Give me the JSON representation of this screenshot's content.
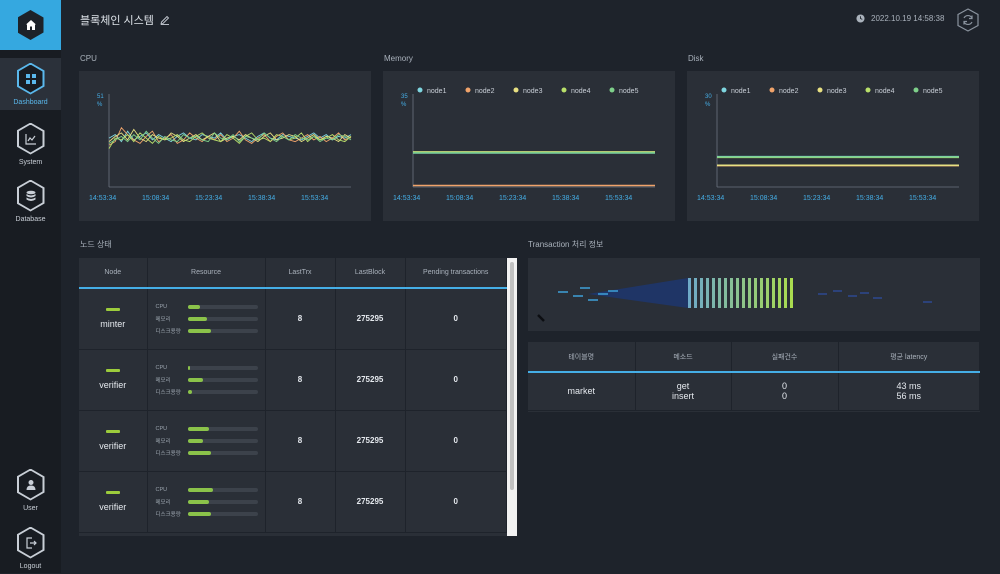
{
  "app": {
    "title": "블록체인 시스템",
    "datetime": "2022.10.19 14:58:38"
  },
  "sidebar": {
    "items": [
      {
        "label": "Dashboard",
        "icon": "dashboard-icon",
        "active": true
      },
      {
        "label": "System",
        "icon": "system-chart-icon",
        "active": false
      },
      {
        "label": "Database",
        "icon": "database-icon",
        "active": false
      },
      {
        "label": "User",
        "icon": "user-icon",
        "active": false
      },
      {
        "label": "Logout",
        "icon": "logout-icon",
        "active": false
      }
    ]
  },
  "sections": {
    "cpu": "CPU",
    "memory": "Memory",
    "disk": "Disk",
    "nodes": "노드 상태",
    "transaction": "Transaction 처리 정보"
  },
  "colors": {
    "accent": "#45aee6",
    "node1": "#7fd6e0",
    "node2": "#f0a36a",
    "node3": "#e8e082",
    "node4": "#b9e06a",
    "node5": "#7ed08a",
    "bar": "#8bc34a"
  },
  "chart_data": [
    {
      "type": "line",
      "title": "CPU",
      "y_top_label": "51",
      "y_unit": "%",
      "x_ticks": [
        "14:53:34",
        "15:08:34",
        "15:23:34",
        "15:38:34",
        "15:53:34"
      ],
      "ylim": [
        0,
        51
      ],
      "series": [
        {
          "name": "node1",
          "values": [
            28,
            30,
            26,
            32,
            27,
            29,
            31,
            27,
            30,
            28,
            26,
            29,
            31,
            28,
            27,
            30,
            29,
            28,
            31,
            27,
            29,
            30,
            28,
            26,
            29,
            31,
            28,
            27,
            30,
            29,
            28,
            27,
            29,
            31,
            28,
            30,
            27,
            29,
            28,
            30
          ]
        },
        {
          "name": "node2",
          "values": [
            24,
            26,
            34,
            30,
            27,
            25,
            29,
            32,
            26,
            28,
            30,
            25,
            27,
            31,
            28,
            26,
            29,
            27,
            30,
            26,
            28,
            32,
            27,
            25,
            28,
            30,
            26,
            29,
            31,
            27,
            26,
            28,
            30,
            27,
            29,
            26,
            28,
            31,
            27,
            29
          ]
        },
        {
          "name": "node3",
          "values": [
            26,
            29,
            31,
            27,
            33,
            28,
            26,
            30,
            28,
            27,
            31,
            29,
            26,
            28,
            30,
            27,
            29,
            31,
            26,
            28,
            29,
            27,
            30,
            28,
            26,
            29,
            31,
            27,
            28,
            30,
            29,
            26,
            28,
            30,
            27,
            29,
            28,
            26,
            30,
            28
          ]
        },
        {
          "name": "node4",
          "values": [
            22,
            28,
            27,
            30,
            26,
            31,
            28,
            25,
            29,
            27,
            28,
            30,
            27,
            26,
            29,
            31,
            28,
            27,
            26,
            30,
            28,
            25,
            29,
            31,
            27,
            28,
            26,
            30,
            29,
            27,
            28,
            31,
            26,
            29,
            27,
            28,
            30,
            27,
            26,
            29
          ]
        },
        {
          "name": "node5",
          "values": [
            25,
            27,
            29,
            26,
            30,
            27,
            32,
            28,
            25,
            29,
            27,
            26,
            30,
            28,
            29,
            27,
            26,
            31,
            28,
            27,
            30,
            26,
            29,
            28,
            27,
            31,
            28,
            26,
            29,
            27,
            30,
            28,
            27,
            29,
            26,
            28,
            27,
            30,
            29,
            27
          ]
        }
      ]
    },
    {
      "type": "line",
      "title": "Memory",
      "y_top_label": "35",
      "y_unit": "%",
      "x_ticks": [
        "14:53:34",
        "15:08:34",
        "15:23:34",
        "15:38:34",
        "15:53:34"
      ],
      "ylim": [
        0,
        35
      ],
      "series": [
        {
          "name": "node1",
          "values": [
            13.4,
            13.4
          ]
        },
        {
          "name": "node2",
          "values": [
            0.6,
            0.6
          ]
        },
        {
          "name": "node3",
          "values": [
            13.8,
            13.8
          ]
        },
        {
          "name": "node4",
          "values": [
            13.6,
            13.6
          ]
        },
        {
          "name": "node5",
          "values": [
            13.5,
            13.5
          ]
        }
      ]
    },
    {
      "type": "line",
      "title": "Disk",
      "y_top_label": "30",
      "y_unit": "%",
      "x_ticks": [
        "14:53:34",
        "15:08:34",
        "15:23:34",
        "15:38:34",
        "15:53:34"
      ],
      "ylim": [
        0,
        30
      ],
      "series": [
        {
          "name": "node1",
          "values": [
            10.2,
            10.2
          ]
        },
        {
          "name": "node2",
          "values": [
            7.2,
            7.2
          ]
        },
        {
          "name": "node3",
          "values": [
            7.3,
            7.3
          ]
        },
        {
          "name": "node4",
          "values": [
            10.0,
            10.0
          ]
        },
        {
          "name": "node5",
          "values": [
            10.1,
            10.1
          ]
        }
      ]
    }
  ],
  "legend": [
    "node1",
    "node2",
    "node3",
    "node4",
    "node5"
  ],
  "nodes_table": {
    "headers": [
      "Node",
      "Resource",
      "LastTrx",
      "LastBlock",
      "Pending transactions"
    ],
    "resource_labels": [
      "CPU",
      "메모리",
      "디스크용량"
    ],
    "rows": [
      {
        "node": "minter",
        "cpu": 0.18,
        "mem": 0.28,
        "disk": 0.34,
        "last_trx": "8",
        "last_block": "275295",
        "pending": "0"
      },
      {
        "node": "verifier",
        "cpu": 0.04,
        "mem": 0.22,
        "disk": 0.06,
        "last_trx": "8",
        "last_block": "275295",
        "pending": "0"
      },
      {
        "node": "verifier",
        "cpu": 0.3,
        "mem": 0.22,
        "disk": 0.34,
        "last_trx": "8",
        "last_block": "275295",
        "pending": "0"
      },
      {
        "node": "verifier",
        "cpu": 0.36,
        "mem": 0.3,
        "disk": 0.34,
        "last_trx": "8",
        "last_block": "275295",
        "pending": "0"
      }
    ]
  },
  "tx_table": {
    "headers": [
      "테이블명",
      "메소드",
      "실패건수",
      "평균 latency"
    ],
    "row": {
      "table": "market",
      "methods": [
        "get",
        "insert"
      ],
      "fails": [
        "0",
        "0"
      ],
      "latency": [
        "43 ms",
        "56 ms"
      ]
    }
  }
}
